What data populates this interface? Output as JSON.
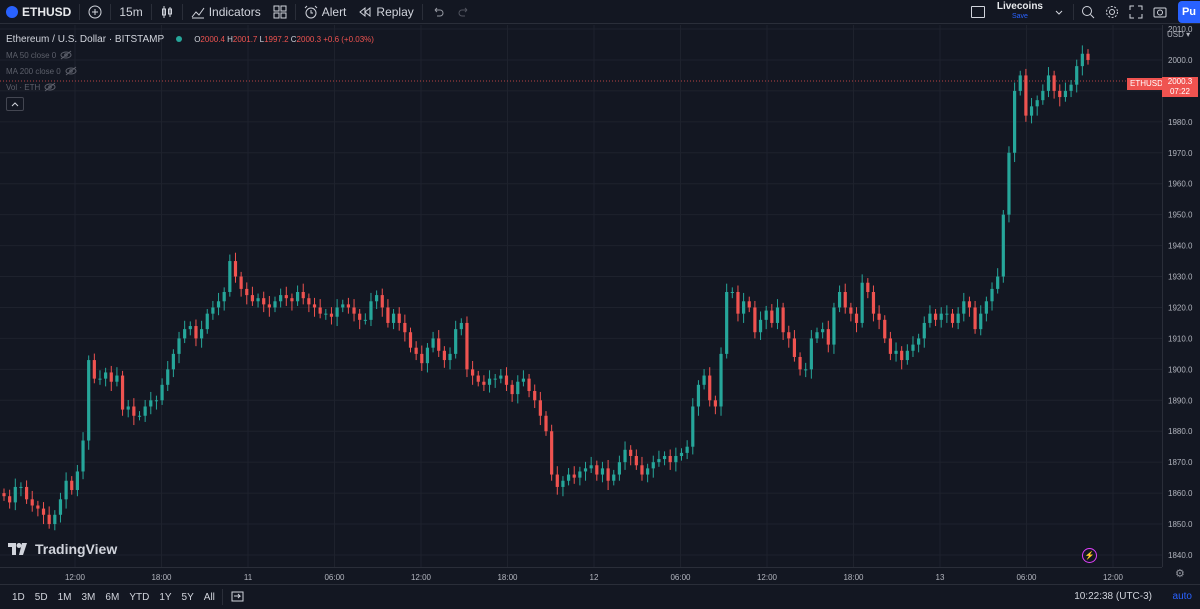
{
  "toolbar": {
    "symbol": "ETHUSD",
    "interval": "15m",
    "indicators_label": "Indicators",
    "alert_label": "Alert",
    "replay_label": "Replay",
    "layout_name": "Livecoins",
    "save_label": "Save",
    "publish_label": "Pu"
  },
  "legend": {
    "title": "Ethereum / U.S. Dollar · BITSTAMP",
    "o_key": "O",
    "o_val": "2000.4",
    "h_key": "H",
    "h_val": "2001.7",
    "l_key": "L",
    "l_val": "1997.2",
    "c_key": "C",
    "c_val": "2000.3",
    "change": "+0.6 (+0.03%)",
    "indicators": [
      "MA 50 close 0",
      "MA 200 close 0",
      "Vol · ETH"
    ]
  },
  "price_scale": {
    "currency": "USD",
    "ticks": [
      "2010.0",
      "2000.0",
      "1990.0",
      "1980.0",
      "1970.0",
      "1960.0",
      "1950.0",
      "1940.0",
      "1930.0",
      "1920.0",
      "1910.0",
      "1900.0",
      "1890.0",
      "1880.0",
      "1870.0",
      "1860.0",
      "1850.0",
      "1840.0"
    ],
    "last_price": "2000.3",
    "countdown": "07:22",
    "symbol_label": "ETHUSD"
  },
  "time_scale": {
    "ticks": [
      "12:00",
      "18:00",
      "11",
      "06:00",
      "12:00",
      "18:00",
      "12",
      "06:00",
      "12:00",
      "18:00",
      "13",
      "06:00",
      "12:00"
    ]
  },
  "bottom_bar": {
    "ranges": [
      "1D",
      "5D",
      "1M",
      "3M",
      "6M",
      "YTD",
      "1Y",
      "5Y",
      "All"
    ],
    "time": "10:22:38 (UTC-3)",
    "auto_label": "auto"
  },
  "branding": {
    "logo_text": "TradingView"
  },
  "colors": {
    "up": "#26a69a",
    "down": "#ef5350",
    "background": "#131722",
    "grid": "#1e222d",
    "accent": "#2962ff"
  },
  "chart_data": {
    "type": "candlestick",
    "symbol": "ETHUSD",
    "ylim": [
      1840,
      2010
    ],
    "x_ticks": [
      "12:00",
      "18:00",
      "11",
      "06:00",
      "12:00",
      "18:00",
      "12",
      "06:00",
      "12:00",
      "18:00",
      "13",
      "06:00",
      "12:00"
    ],
    "series": [
      {
        "close": [
          1859,
          1857,
          1862,
          1862,
          1858,
          1856,
          1855,
          1853,
          1850,
          1853,
          1858,
          1864,
          1861,
          1867,
          1877,
          1903,
          1897,
          1897,
          1899,
          1896,
          1898,
          1887,
          1888,
          1885,
          1885,
          1888,
          1890,
          1890,
          1895,
          1900,
          1905,
          1910,
          1913,
          1914,
          1910,
          1913,
          1918,
          1920,
          1922,
          1925,
          1935,
          1930,
          1926,
          1924,
          1922,
          1923,
          1921,
          1920,
          1922,
          1924,
          1923,
          1922,
          1925,
          1923,
          1921,
          1920,
          1918,
          1918,
          1917,
          1920,
          1921,
          1920,
          1918,
          1916,
          1916,
          1922,
          1924,
          1920,
          1915,
          1918,
          1915,
          1912,
          1907,
          1905,
          1902,
          1907,
          1910,
          1906,
          1903,
          1905,
          1913,
          1915,
          1900,
          1898,
          1896,
          1895,
          1897,
          1897,
          1898,
          1895,
          1892,
          1896,
          1897,
          1893,
          1890,
          1885,
          1880,
          1866,
          1862,
          1864,
          1866,
          1865,
          1867,
          1868,
          1869,
          1866,
          1868,
          1864,
          1866,
          1870,
          1874,
          1872,
          1869,
          1866,
          1868,
          1870,
          1871,
          1872,
          1870,
          1872,
          1873,
          1875,
          1888,
          1895,
          1898,
          1890,
          1888,
          1905,
          1925,
          1925,
          1918,
          1922,
          1920,
          1912,
          1916,
          1919,
          1915,
          1920,
          1912,
          1910,
          1904,
          1900,
          1900,
          1910,
          1912,
          1913,
          1908,
          1920,
          1925,
          1920,
          1918,
          1915,
          1928,
          1925,
          1918,
          1916,
          1910,
          1905,
          1906,
          1903,
          1906,
          1908,
          1910,
          1915,
          1918,
          1916,
          1918,
          1918,
          1915,
          1918,
          1922,
          1920,
          1913,
          1918,
          1922,
          1926,
          1930,
          1950,
          1970,
          1990,
          1995,
          1982,
          1985,
          1987,
          1990,
          1995,
          1990,
          1988,
          1990,
          1992,
          1998,
          2002,
          2000
        ]
      }
    ]
  }
}
